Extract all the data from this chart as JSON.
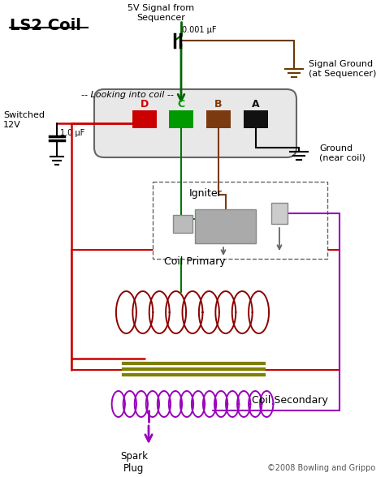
{
  "title": "LS2 Coil",
  "bg_color": "#ffffff",
  "title_color": "#000000",
  "title_fontsize": 14,
  "subtitle": "-- Looking into coil --",
  "top_label": "5V Signal from\nSequencer",
  "cap_label": "0.001 μF",
  "signal_ground_label": "Signal Ground\n(at Sequencer)",
  "switched_label": "Switched\n12V",
  "cap2_label": "1.0 μF",
  "ground_label": "Ground\n(near coil)",
  "igniter_label": "Igniter",
  "coil_primary_label": "Coil Primary",
  "coil_secondary_label": "Coil Secondary",
  "spark_plug_label": "Spark\nPlug",
  "copyright": "©2008 Bowling and Grippo",
  "connector_labels": [
    "D",
    "C",
    "B",
    "A"
  ],
  "pin_colors": [
    "#cc0000",
    "#009900",
    "#7b3a10",
    "#111111"
  ],
  "wire_red": "#cc0000",
  "wire_green": "#007700",
  "wire_brown": "#7b3a10",
  "wire_black": "#111111",
  "wire_purple": "#9900bb",
  "wire_darkred": "#8b0000",
  "wire_olive": "#808000",
  "arrow_green": "#006600",
  "connector_edge": "#666666",
  "connector_fill": "#e8e8e8"
}
